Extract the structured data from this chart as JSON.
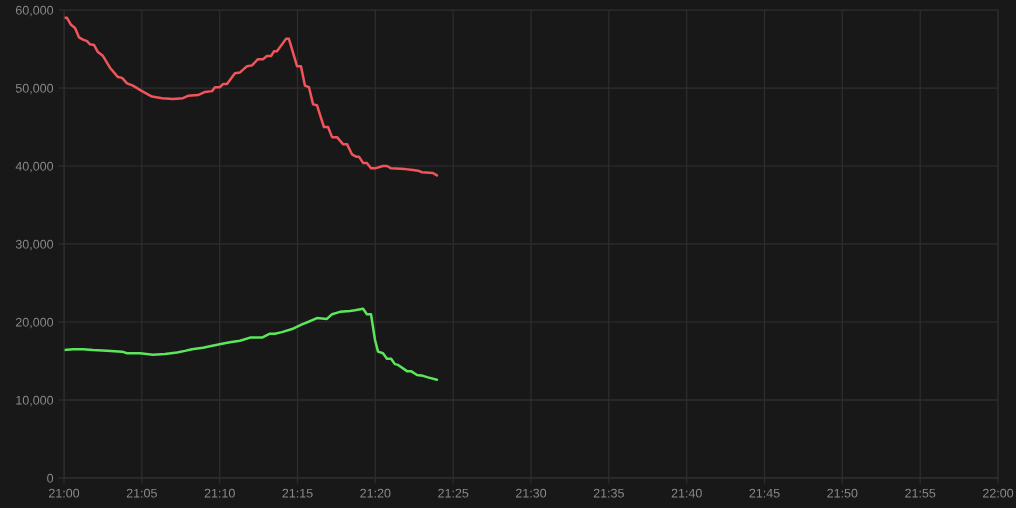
{
  "chart_data": {
    "type": "line",
    "x": [
      21.0,
      21.0032,
      21.0075,
      21.0118,
      21.016,
      21.0203,
      21.0247,
      21.0278,
      21.0322,
      21.0363,
      21.0418,
      21.0492,
      21.0578,
      21.0622,
      21.0675,
      21.0738,
      21.0835,
      21.0942,
      21.105,
      21.1167,
      21.1273,
      21.1328,
      21.1435,
      21.151,
      21.1585,
      21.1617,
      21.167,
      21.1702,
      21.1745,
      21.183,
      21.1885,
      21.196,
      21.2013,
      21.2077,
      21.213,
      21.2173,
      21.2217,
      21.2248,
      21.228,
      21.2377,
      21.2408,
      21.2495,
      21.2537,
      21.258,
      21.2623,
      21.2667,
      21.2708,
      21.2783,
      21.2827,
      21.287,
      21.2923,
      21.2987,
      21.303,
      21.3083,
      21.3127,
      21.3158,
      21.3202,
      21.3243,
      21.3287,
      21.333,
      21.3415,
      21.3458,
      21.3502,
      21.3652,
      21.3737,
      21.379,
      21.3833,
      21.395,
      21.3993
    ],
    "series": [
      {
        "color": "#f2545b",
        "values": [
          59000,
          59000,
          58100,
          57700,
          56500,
          56200,
          56000,
          55600,
          55500,
          54600,
          54100,
          52600,
          51400,
          51300,
          50600,
          50300,
          49600,
          48900,
          48700,
          48600,
          48700,
          49000,
          49100,
          49500,
          49600,
          50100,
          50100,
          50500,
          50500,
          51900,
          52000,
          52800,
          52900,
          53700,
          53700,
          54100,
          54100,
          54700,
          54700,
          56300,
          56300,
          52800,
          52800,
          50300,
          50100,
          47900,
          47800,
          45000,
          45000,
          43700,
          43700,
          42800,
          42800,
          41500,
          41200,
          41200,
          40400,
          40400,
          39700,
          39700,
          40000,
          40000,
          39700,
          39600,
          39500,
          39400,
          39200,
          39100,
          38800
        ]
      },
      {
        "color": "#5ce65c",
        "x": [
          21.0,
          21.0096,
          21.0203,
          21.031,
          21.046,
          21.0622,
          21.0675,
          21.0813,
          21.0953,
          21.1082,
          21.121,
          21.1295,
          21.137,
          21.1488,
          21.1563,
          21.1692,
          21.1777,
          21.1885,
          21.1992,
          21.212,
          21.2205,
          21.2258,
          21.2333,
          21.2442,
          21.2548,
          21.2612,
          21.2708,
          21.2815,
          21.287,
          21.2955,
          21.3062,
          21.3115,
          21.3202,
          21.3243,
          21.3287,
          21.333,
          21.3362,
          21.3415,
          21.3458,
          21.3502,
          21.3543,
          21.3577,
          21.3672,
          21.3715,
          21.378,
          21.3843,
          21.3897,
          21.3993
        ],
        "values": [
          16400,
          16500,
          16500,
          16400,
          16300,
          16200,
          16000,
          16000,
          15800,
          15900,
          16100,
          16300,
          16500,
          16700,
          16900,
          17200,
          17400,
          17600,
          18000,
          18000,
          18500,
          18500,
          18700,
          19100,
          19700,
          20000,
          20500,
          20400,
          21000,
          21300,
          21400,
          21500,
          21700,
          21000,
          21000,
          17700,
          16200,
          16000,
          15300,
          15300,
          14600,
          14500,
          13700,
          13700,
          13200,
          13100,
          12900,
          12600
        ]
      }
    ],
    "xlim": [
      21,
      22
    ],
    "xticks": [
      {
        "value": 21.0,
        "label": "21:00"
      },
      {
        "value": 21.0833,
        "label": "21:05"
      },
      {
        "value": 21.1667,
        "label": "21:10"
      },
      {
        "value": 21.25,
        "label": "21:15"
      },
      {
        "value": 21.3333,
        "label": "21:20"
      },
      {
        "value": 21.4167,
        "label": "21:25"
      },
      {
        "value": 21.5,
        "label": "21:30"
      },
      {
        "value": 21.5833,
        "label": "21:35"
      },
      {
        "value": 21.6667,
        "label": "21:40"
      },
      {
        "value": 21.75,
        "label": "21:45"
      },
      {
        "value": 21.8333,
        "label": "21:50"
      },
      {
        "value": 21.9167,
        "label": "21:55"
      },
      {
        "value": 22.0,
        "label": "22:00"
      }
    ],
    "ylim": [
      0,
      60000
    ],
    "yticks": [
      0,
      {
        "value": 10000,
        "label": "10,000"
      },
      {
        "value": 20000,
        "label": "20,000"
      },
      {
        "value": 30000,
        "label": "30,000"
      },
      {
        "value": 40000,
        "label": "40,000"
      },
      {
        "value": 50000,
        "label": "50,000"
      },
      {
        "value": 60000,
        "label": "60,000"
      }
    ],
    "grid": true,
    "marker": "none",
    "line_style": "solid"
  }
}
